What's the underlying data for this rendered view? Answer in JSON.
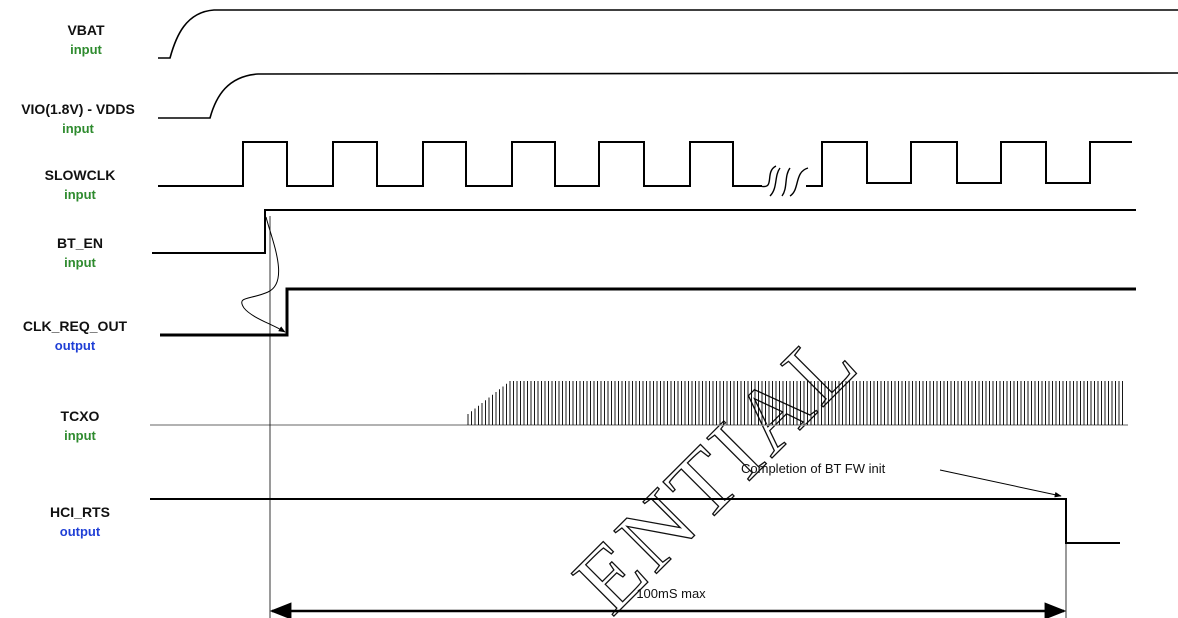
{
  "signals": [
    {
      "name": "VBAT",
      "direction": "input"
    },
    {
      "name": "VIO(1.8V) - VDDS",
      "direction": "input"
    },
    {
      "name": "SLOWCLK",
      "direction": "input"
    },
    {
      "name": "BT_EN",
      "direction": "input"
    },
    {
      "name": "CLK_REQ_OUT",
      "direction": "output"
    },
    {
      "name": "TCXO",
      "direction": "input"
    },
    {
      "name": "HCI_RTS",
      "direction": "output"
    }
  ],
  "annotations": {
    "fw_init": "Completion of BT FW init",
    "max_time": "100mS max"
  },
  "watermark": "ENTIAL",
  "colors": {
    "input": "#2e8b2e",
    "output": "#1f3fd6",
    "trace": "#000000",
    "tcxo_idle": "#999999"
  }
}
